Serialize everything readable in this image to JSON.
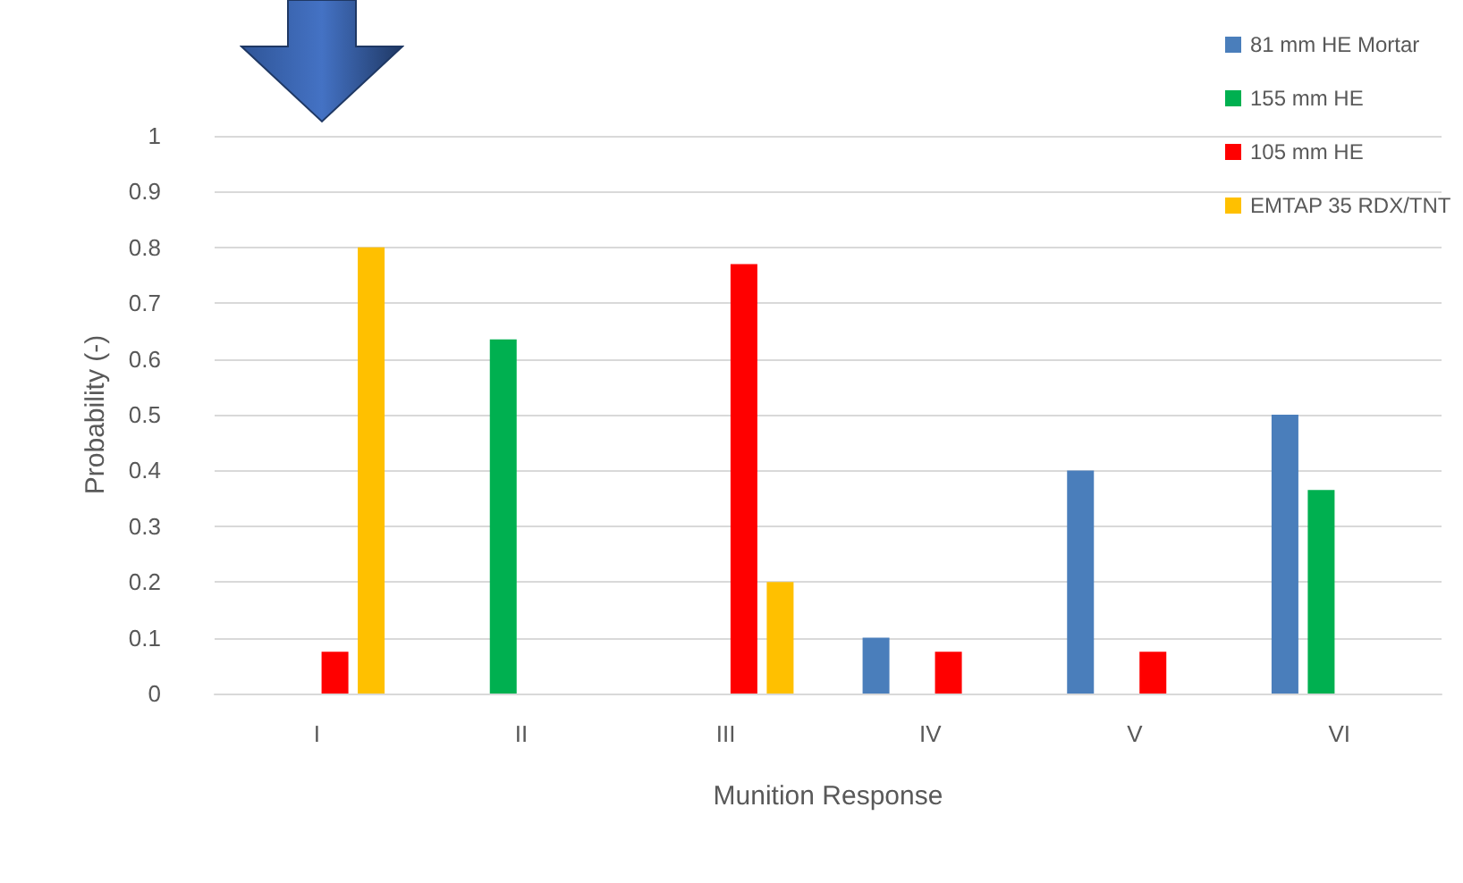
{
  "chart_data": {
    "type": "bar",
    "xlabel": "Munition Response",
    "ylabel": "Probability (-)",
    "categories": [
      "I",
      "II",
      "III",
      "IV",
      "V",
      "VI"
    ],
    "series": [
      {
        "name": "81 mm HE Mortar",
        "color": "#4a7ebb",
        "values": [
          0,
          0,
          0,
          0.1,
          0.4,
          0.5
        ]
      },
      {
        "name": "155 mm HE",
        "color": "#00b050",
        "values": [
          0,
          0.635,
          0,
          0,
          0,
          0.365
        ]
      },
      {
        "name": "105 mm HE",
        "color": "#ff0000",
        "values": [
          0.075,
          0,
          0.77,
          0.075,
          0.075,
          0
        ]
      },
      {
        "name": "EMTAP 35 RDX/TNT",
        "color": "#ffc000",
        "values": [
          0.8,
          0,
          0.2,
          0,
          0,
          0
        ]
      }
    ],
    "ylim": [
      0,
      1
    ],
    "yticks": [
      0,
      0.1,
      0.2,
      0.3,
      0.4,
      0.5,
      0.6,
      0.7,
      0.8,
      0.9,
      1
    ],
    "grid": "y",
    "legend": "top right"
  }
}
